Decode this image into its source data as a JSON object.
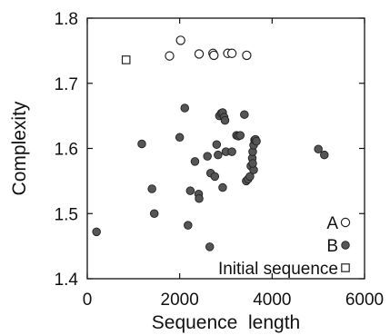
{
  "chart_data": {
    "type": "scatter",
    "xlabel": "Sequence  length",
    "ylabel": "Complexity",
    "xlim": [
      0,
      6000
    ],
    "ylim": [
      1.4,
      1.8
    ],
    "x_ticks": [
      0,
      2000,
      4000,
      6000
    ],
    "x_tick_labels": [
      "0",
      "2000",
      "4000",
      "6000"
    ],
    "y_ticks": [
      1.4,
      1.5,
      1.6,
      1.7,
      1.8
    ],
    "y_tick_labels": [
      "1.4",
      "1.5",
      "1.6",
      "1.7",
      "1.8"
    ],
    "grid": false,
    "legend_position": "bottom-right",
    "legend": [
      {
        "label": "A",
        "marker": "open-circle"
      },
      {
        "label": "B",
        "marker": "filled-circle"
      },
      {
        "label": "Initial sequence",
        "marker": "open-square"
      }
    ],
    "series": [
      {
        "name": "A",
        "marker": "open-circle",
        "points": [
          [
            1780,
            1.742
          ],
          [
            2020,
            1.766
          ],
          [
            2420,
            1.745
          ],
          [
            2720,
            1.746
          ],
          [
            2740,
            1.743
          ],
          [
            3040,
            1.746
          ],
          [
            3130,
            1.746
          ],
          [
            3450,
            1.743
          ]
        ]
      },
      {
        "name": "B",
        "marker": "filled-circle",
        "points": [
          [
            200,
            1.472
          ],
          [
            1180,
            1.607
          ],
          [
            1400,
            1.538
          ],
          [
            1450,
            1.5
          ],
          [
            2000,
            1.617
          ],
          [
            2110,
            1.662
          ],
          [
            2180,
            1.482
          ],
          [
            2230,
            1.535
          ],
          [
            2330,
            1.58
          ],
          [
            2410,
            1.53
          ],
          [
            2420,
            1.523
          ],
          [
            2600,
            1.588
          ],
          [
            2650,
            1.449
          ],
          [
            2670,
            1.562
          ],
          [
            2760,
            1.557
          ],
          [
            2800,
            1.606
          ],
          [
            2830,
            1.59
          ],
          [
            2860,
            1.65
          ],
          [
            2900,
            1.654
          ],
          [
            2930,
            1.655
          ],
          [
            2960,
            1.648
          ],
          [
            2980,
            1.643
          ],
          [
            2930,
            1.54
          ],
          [
            3000,
            1.595
          ],
          [
            3130,
            1.595
          ],
          [
            3230,
            1.62
          ],
          [
            3270,
            1.619
          ],
          [
            3310,
            1.62
          ],
          [
            3400,
            1.652
          ],
          [
            3440,
            1.55
          ],
          [
            3480,
            1.553
          ],
          [
            3520,
            1.557
          ],
          [
            3540,
            1.573
          ],
          [
            3570,
            1.585
          ],
          [
            3580,
            1.595
          ],
          [
            3600,
            1.605
          ],
          [
            3620,
            1.613
          ],
          [
            3640,
            1.614
          ],
          [
            3660,
            1.611
          ],
          [
            3600,
            1.567
          ],
          [
            3580,
            1.577
          ],
          [
            5000,
            1.599
          ],
          [
            5130,
            1.59
          ]
        ]
      },
      {
        "name": "Initial sequence",
        "marker": "open-square",
        "points": [
          [
            840,
            1.736
          ]
        ]
      }
    ]
  }
}
